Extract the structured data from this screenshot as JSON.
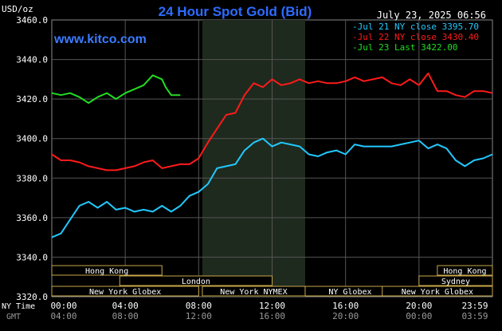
{
  "chart_data": {
    "type": "line",
    "title": "24 Hour Spot Gold (Bid)",
    "brand": "www.kitco.com",
    "date_label": "July 23, 2025 06:56",
    "ylabel": "USD/oz",
    "ylim": [
      3320,
      3460
    ],
    "xlim_hours": [
      0,
      24
    ],
    "y_ticks": [
      {
        "value": 3460,
        "label": "3460.0"
      },
      {
        "value": 3440,
        "label": "3440.0"
      },
      {
        "value": 3420,
        "label": "3420.0"
      },
      {
        "value": 3400,
        "label": "3400.0"
      },
      {
        "value": 3380,
        "label": "3380.0"
      },
      {
        "value": 3360,
        "label": "3360.0"
      },
      {
        "value": 3340,
        "label": "3340.0"
      },
      {
        "value": 3320,
        "label": "3320.0"
      }
    ],
    "x_row_labels": {
      "ny": "NY Time",
      "gmt": "GMT"
    },
    "x_ticks": [
      {
        "hour": 0,
        "ny": "00:00",
        "gmt": "04:00"
      },
      {
        "hour": 4,
        "ny": "04:00",
        "gmt": "08:00"
      },
      {
        "hour": 8,
        "ny": "08:00",
        "gmt": "12:00"
      },
      {
        "hour": 12,
        "ny": "12:00",
        "gmt": "16:00"
      },
      {
        "hour": 16,
        "ny": "16:00",
        "gmt": "20:00"
      },
      {
        "hour": 20,
        "ny": "20:00",
        "gmt": "00:00"
      },
      {
        "hour": 24,
        "ny": "23:59",
        "gmt": "03:59"
      }
    ],
    "shaded_hours": [
      8.2,
      13.8
    ],
    "legend": [
      {
        "text": "Jul 21 NY close 3395.70",
        "color": "#22c8ff"
      },
      {
        "text": "Jul 22 NY close 3430.40",
        "color": "#ff1a1a"
      },
      {
        "text": "Jul 23 Last 3422.00",
        "color": "#22dd22"
      }
    ],
    "sessions": [
      {
        "label": "Hong Kong",
        "start": 0,
        "end": 6.0,
        "row": 0
      },
      {
        "label": "London",
        "start": 3.7,
        "end": 12.0,
        "row": 1
      },
      {
        "label": "New York Globex",
        "start": 0,
        "end": 8.0,
        "row": 2
      },
      {
        "label": "New York NYMEX",
        "start": 8.2,
        "end": 13.8,
        "row": 2
      },
      {
        "label": "NY Globex",
        "start": 13.8,
        "end": 18.7,
        "row": 2
      },
      {
        "label": "Hong Kong",
        "start": 21.0,
        "end": 24,
        "row": 0
      },
      {
        "label": "Sydney",
        "start": 20.0,
        "end": 24,
        "row": 1
      },
      {
        "label": "New York Globex",
        "start": 18.0,
        "end": 24,
        "row": 2
      }
    ],
    "series": [
      {
        "name": "Jul 21",
        "color": "#22c8ff",
        "points": [
          [
            0,
            3350
          ],
          [
            0.5,
            3352
          ],
          [
            1,
            3359
          ],
          [
            1.5,
            3366
          ],
          [
            2,
            3368
          ],
          [
            2.5,
            3365
          ],
          [
            3,
            3368
          ],
          [
            3.5,
            3364
          ],
          [
            4,
            3365
          ],
          [
            4.5,
            3363
          ],
          [
            5,
            3364
          ],
          [
            5.5,
            3363
          ],
          [
            6,
            3366
          ],
          [
            6.5,
            3363
          ],
          [
            7,
            3366
          ],
          [
            7.5,
            3371
          ],
          [
            8,
            3373
          ],
          [
            8.5,
            3377
          ],
          [
            9,
            3385
          ],
          [
            9.5,
            3386
          ],
          [
            10,
            3387
          ],
          [
            10.5,
            3394
          ],
          [
            11,
            3398
          ],
          [
            11.5,
            3400
          ],
          [
            12,
            3396
          ],
          [
            12.5,
            3398
          ],
          [
            13,
            3397
          ],
          [
            13.5,
            3396
          ],
          [
            14,
            3392
          ],
          [
            14.5,
            3391
          ],
          [
            15,
            3393
          ],
          [
            15.5,
            3394
          ],
          [
            16,
            3392
          ],
          [
            16.5,
            3397
          ],
          [
            17,
            3396
          ],
          [
            17.5,
            3396
          ],
          [
            18,
            3396
          ],
          [
            18.5,
            3396
          ],
          [
            19,
            3397
          ],
          [
            19.5,
            3398
          ],
          [
            20,
            3399
          ],
          [
            20.5,
            3395
          ],
          [
            21,
            3397
          ],
          [
            21.5,
            3395
          ],
          [
            22,
            3389
          ],
          [
            22.5,
            3386
          ],
          [
            23,
            3389
          ],
          [
            23.5,
            3390
          ],
          [
            24,
            3392
          ]
        ]
      },
      {
        "name": "Jul 22",
        "color": "#ff1a1a",
        "points": [
          [
            0,
            3392
          ],
          [
            0.5,
            3389
          ],
          [
            1,
            3389
          ],
          [
            1.5,
            3388
          ],
          [
            2,
            3386
          ],
          [
            2.5,
            3385
          ],
          [
            3,
            3384
          ],
          [
            3.5,
            3384
          ],
          [
            4,
            3385
          ],
          [
            4.5,
            3386
          ],
          [
            5,
            3388
          ],
          [
            5.5,
            3389
          ],
          [
            6,
            3385
          ],
          [
            6.5,
            3386
          ],
          [
            7,
            3387
          ],
          [
            7.5,
            3387
          ],
          [
            8,
            3390
          ],
          [
            8.5,
            3398
          ],
          [
            9,
            3405
          ],
          [
            9.5,
            3412
          ],
          [
            10,
            3413
          ],
          [
            10.5,
            3422
          ],
          [
            11,
            3428
          ],
          [
            11.5,
            3426
          ],
          [
            12,
            3430
          ],
          [
            12.5,
            3427
          ],
          [
            13,
            3428
          ],
          [
            13.5,
            3430
          ],
          [
            14,
            3428
          ],
          [
            14.5,
            3429
          ],
          [
            15,
            3428
          ],
          [
            15.5,
            3428
          ],
          [
            16,
            3429
          ],
          [
            16.5,
            3431
          ],
          [
            17,
            3429
          ],
          [
            17.5,
            3430
          ],
          [
            18,
            3431
          ],
          [
            18.5,
            3428
          ],
          [
            19,
            3427
          ],
          [
            19.5,
            3430
          ],
          [
            20,
            3427
          ],
          [
            20.5,
            3433
          ],
          [
            21,
            3424
          ],
          [
            21.5,
            3424
          ],
          [
            22,
            3422
          ],
          [
            22.5,
            3421
          ],
          [
            23,
            3424
          ],
          [
            23.5,
            3424
          ],
          [
            24,
            3423
          ]
        ]
      },
      {
        "name": "Jul 23",
        "color": "#22dd22",
        "points": [
          [
            0,
            3423
          ],
          [
            0.5,
            3422
          ],
          [
            1,
            3423
          ],
          [
            1.5,
            3421
          ],
          [
            2,
            3418
          ],
          [
            2.5,
            3421
          ],
          [
            3,
            3423
          ],
          [
            3.5,
            3420
          ],
          [
            4,
            3423
          ],
          [
            4.5,
            3425
          ],
          [
            5,
            3427
          ],
          [
            5.5,
            3432
          ],
          [
            6,
            3430
          ],
          [
            6.2,
            3426
          ],
          [
            6.5,
            3422
          ],
          [
            7,
            3422
          ]
        ]
      }
    ]
  }
}
